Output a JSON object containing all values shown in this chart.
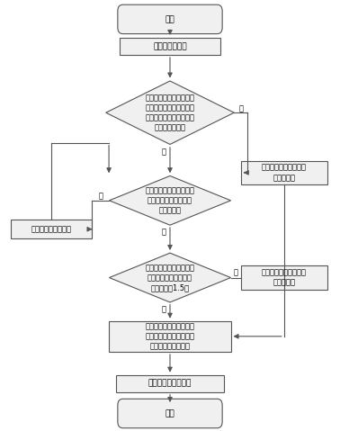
{
  "background_color": "#ffffff",
  "edge_color": "#555555",
  "rect_color": "#f0f0f0",
  "font_size": 6.5,
  "start_text": "开始",
  "step1_text": "建立二维坐标系",
  "diamond1_text": "所有基站候选点在目标区\n域中的实际覆盖范围是否\n等于所有基站候选点理论\n的最大覆盖范围",
  "right1_text": "所有基站候选点都作为\n基站安置点",
  "diamond2_text": "去掉某个基站候选点对目\n标区域的实际覆盖范围\n是否有影响",
  "left1_text": "取消这个基站候选点",
  "diamond3_text": "两个基站候选点的基站间\n距是否小于基站候选点\n覆盖半径的1.5倍",
  "right2_text": "两个基站候选点都作为\n基站安置点",
  "step2_text": "取消两个基站候选点中与\n其它基站候选点覆盖区域\n的重叠程度大的一个",
  "step3_text": "确定最终基站安置点",
  "end_text": "结束",
  "yes_text": "是",
  "no_text": "否"
}
